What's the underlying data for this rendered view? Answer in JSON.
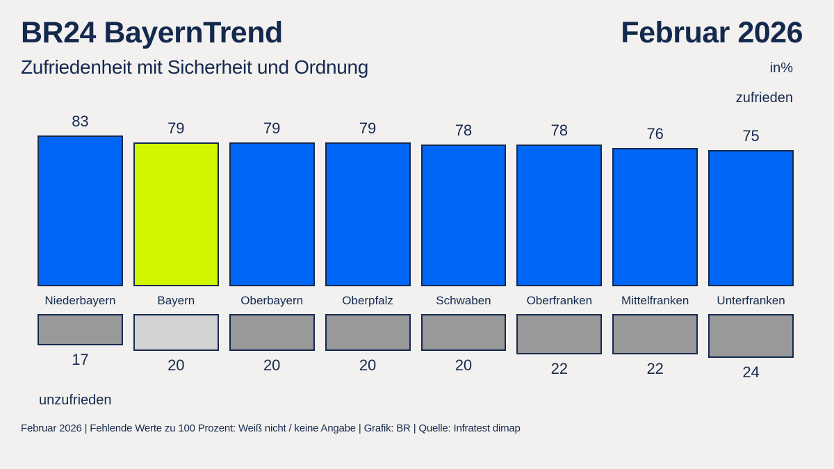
{
  "header": {
    "title": "BR24 BayernTrend",
    "date": "Februar 2026",
    "subtitle": "Zufriedenheit mit Sicherheit und Ordnung",
    "unit_label": "in%",
    "top_axis_label": "zufrieden",
    "bottom_axis_label": "unzufrieden"
  },
  "footer": {
    "source_line": "Februar 2026 | Fehlende Werte zu 100 Prozent: Weiß nicht / keine Angabe | Grafik: BR | Quelle: Infratest dimap"
  },
  "colors": {
    "background": "#f2f1ef",
    "text_navy": "#15294e",
    "primary_bar": "#0066f5",
    "highlight_bar": "#d2f500",
    "gray_bar": "#99999a",
    "highlight_gray_bar": "#d3d3d3",
    "bar_border": "#15294e"
  },
  "chart_data": {
    "type": "bar",
    "title": "Zufriedenheit mit Sicherheit und Ordnung",
    "unit": "in%",
    "categories": [
      "Niederbayern",
      "Bayern",
      "Oberbayern",
      "Oberpfalz",
      "Schwaben",
      "Oberfranken",
      "Mittelfranken",
      "Unterfranken"
    ],
    "series": [
      {
        "name": "zufrieden",
        "values": [
          83,
          79,
          79,
          79,
          78,
          78,
          76,
          75
        ]
      },
      {
        "name": "unzufrieden",
        "values": [
          17,
          20,
          20,
          20,
          20,
          22,
          22,
          24
        ]
      }
    ],
    "highlight_category": "Bayern",
    "ylim": [
      0,
      100
    ],
    "grid": false,
    "legend_position": "axis-labels-top-right-and-bottom-left"
  }
}
